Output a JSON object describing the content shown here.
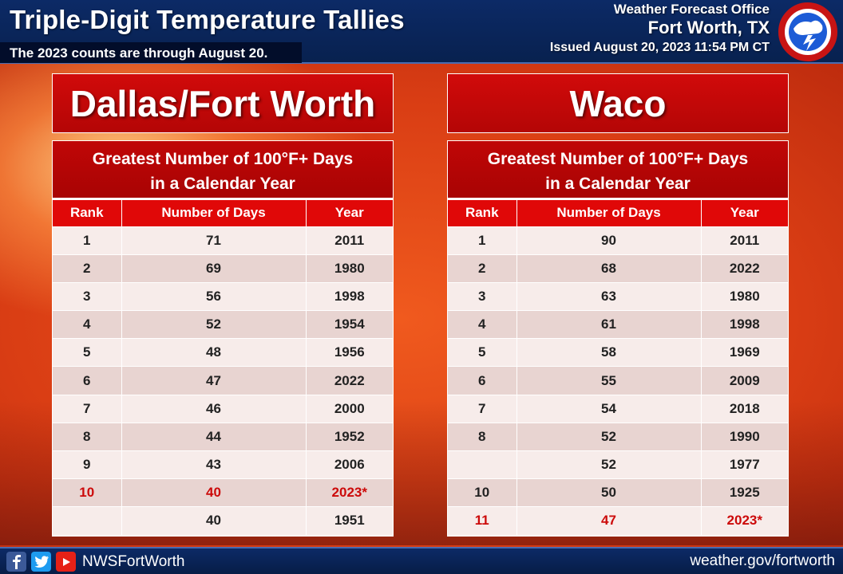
{
  "header": {
    "title": "Triple-Digit Temperature Tallies",
    "subtitle": "The 2023 counts are through August 20.",
    "office_line1": "Weather Forecast Office",
    "office_line2": "Fort Worth, TX",
    "issued": "Issued August 20, 2023 11:54 PM CT",
    "logo_icon": "nws-logo-icon"
  },
  "colors": {
    "header_blue": "#0c2a66",
    "panel_red": "#c00606",
    "header_row_red": "#e00808",
    "highlight_red": "#cc0a0a",
    "row_light": "#f7ecea",
    "row_dark": "#e8d4d1"
  },
  "stations": [
    {
      "name": "Dallas/Fort Worth",
      "table_title_line1": "Greatest Number of 100°F+ Days",
      "table_title_line2": "in a Calendar Year",
      "columns": [
        "Rank",
        "Number of Days",
        "Year"
      ],
      "rows": [
        {
          "rank": "1",
          "days": "71",
          "year": "2011"
        },
        {
          "rank": "2",
          "days": "69",
          "year": "1980"
        },
        {
          "rank": "3",
          "days": "56",
          "year": "1998"
        },
        {
          "rank": "4",
          "days": "52",
          "year": "1954"
        },
        {
          "rank": "5",
          "days": "48",
          "year": "1956"
        },
        {
          "rank": "6",
          "days": "47",
          "year": "2022"
        },
        {
          "rank": "7",
          "days": "46",
          "year": "2000"
        },
        {
          "rank": "8",
          "days": "44",
          "year": "1952"
        },
        {
          "rank": "9",
          "days": "43",
          "year": "2006"
        },
        {
          "rank": "10",
          "days": "40",
          "year": "2023*",
          "highlight": true
        },
        {
          "rank": "",
          "days": "40",
          "year": "1951"
        }
      ]
    },
    {
      "name": "Waco",
      "table_title_line1": "Greatest Number of 100°F+ Days",
      "table_title_line2": "in a Calendar Year",
      "columns": [
        "Rank",
        "Number of Days",
        "Year"
      ],
      "rows": [
        {
          "rank": "1",
          "days": "90",
          "year": "2011"
        },
        {
          "rank": "2",
          "days": "68",
          "year": "2022"
        },
        {
          "rank": "3",
          "days": "63",
          "year": "1980"
        },
        {
          "rank": "4",
          "days": "61",
          "year": "1998"
        },
        {
          "rank": "5",
          "days": "58",
          "year": "1969"
        },
        {
          "rank": "6",
          "days": "55",
          "year": "2009"
        },
        {
          "rank": "7",
          "days": "54",
          "year": "2018"
        },
        {
          "rank": "8",
          "days": "52",
          "year": "1990"
        },
        {
          "rank": "",
          "days": "52",
          "year": "1977"
        },
        {
          "rank": "10",
          "days": "50",
          "year": "1925"
        },
        {
          "rank": "11",
          "days": "47",
          "year": "2023*",
          "highlight": true
        }
      ]
    }
  ],
  "footer": {
    "social_icons": [
      "facebook-icon",
      "twitter-icon",
      "youtube-icon"
    ],
    "handle": "NWSFortWorth",
    "website": "weather.gov/fortworth"
  }
}
